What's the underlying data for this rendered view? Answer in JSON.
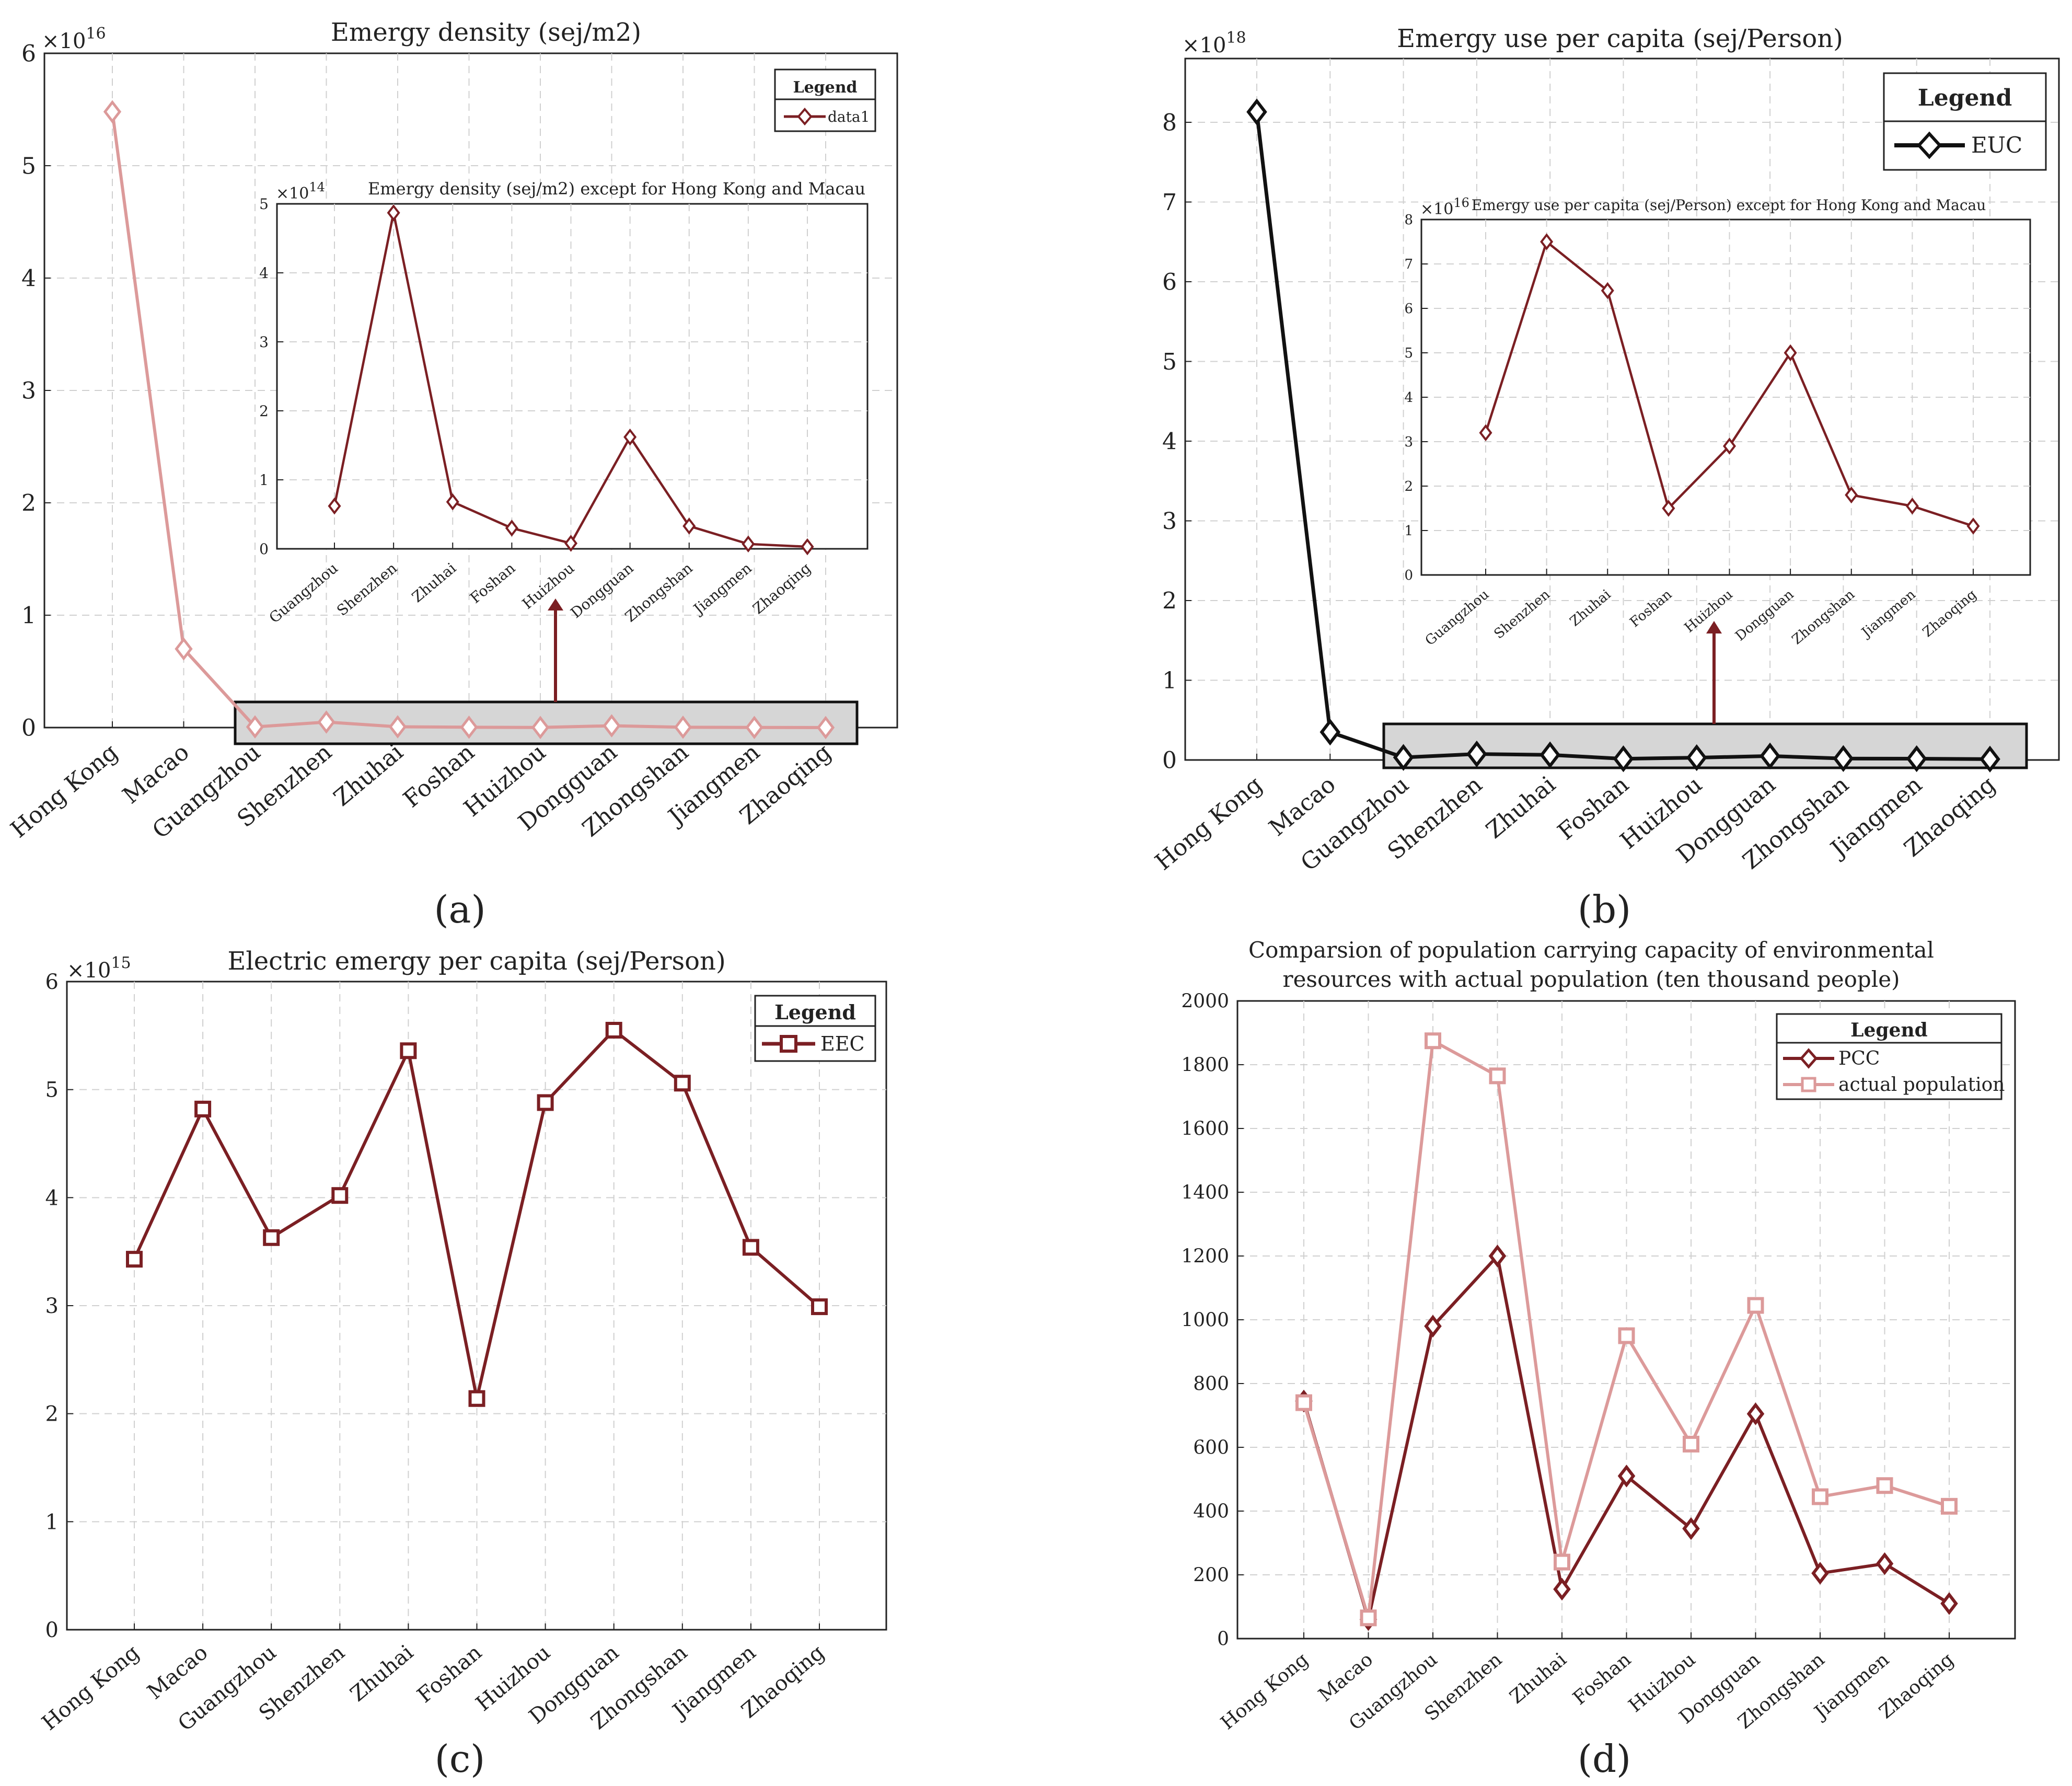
{
  "colors": {
    "dark_red": "#7b1f23",
    "pink": "#dc9a9a",
    "black": "#111111",
    "highlight_fill": "#d6d6d6",
    "grid": "#d0d0d0"
  },
  "panel_labels": {
    "a": "(a)",
    "b": "(b)",
    "c": "(c)",
    "d": "(d)"
  },
  "legend_header": "Legend",
  "chart_data": [
    {
      "id": "a",
      "type": "line",
      "title": "Emergy density (sej/m2)",
      "multiplier": "×10",
      "multiplier_exp": "16",
      "categories": [
        "Hong Kong",
        "Macao",
        "Guangzhou",
        "Shenzhen",
        "Zhuhai",
        "Foshan",
        "Huizhou",
        "Dongguan",
        "Zhongshan",
        "Jiangmen",
        "Zhaoqing"
      ],
      "series": [
        {
          "name": "data1",
          "color": "#dc9a9a",
          "marker": "diamond",
          "values": [
            5.48,
            0.7,
            0.006,
            0.049,
            0.007,
            0.003,
            0.001,
            0.016,
            0.003,
            0.001,
            0.0002
          ]
        }
      ],
      "ylim": [
        0,
        6
      ],
      "yticks": [
        0,
        1,
        2,
        3,
        4,
        5,
        6
      ],
      "grid": true,
      "legend_position": "top-right",
      "highlight": "Guangzhou–Zhaoqing",
      "inset": {
        "title": "Emergy density (sej/m2) except for Hong Kong and Macau",
        "multiplier": "×10",
        "multiplier_exp": "14",
        "categories": [
          "Guangzhou",
          "Shenzhen",
          "Zhuhai",
          "Foshan",
          "Huizhou",
          "Dongguan",
          "Zhongshan",
          "Jiangmen",
          "Zhaoqing"
        ],
        "values": [
          0.62,
          4.87,
          0.68,
          0.3,
          0.08,
          1.62,
          0.33,
          0.07,
          0.03
        ],
        "ylim": [
          0,
          5
        ],
        "yticks": [
          0,
          1,
          2,
          3,
          4,
          5
        ],
        "color": "#7b1f23"
      }
    },
    {
      "id": "b",
      "type": "line",
      "title": "Emergy use per capita (sej/Person)",
      "multiplier": "×10",
      "multiplier_exp": "18",
      "categories": [
        "Hong Kong",
        "Macao",
        "Guangzhou",
        "Shenzhen",
        "Zhuhai",
        "Foshan",
        "Huizhou",
        "Dongguan",
        "Zhongshan",
        "Jiangmen",
        "Zhaoqing"
      ],
      "series": [
        {
          "name": "EUC",
          "color": "#111111",
          "marker": "diamond",
          "values": [
            8.13,
            0.35,
            0.032,
            0.075,
            0.064,
            0.015,
            0.029,
            0.05,
            0.018,
            0.016,
            0.011
          ]
        }
      ],
      "ylim": [
        0,
        8.8
      ],
      "yticks": [
        0,
        1,
        2,
        3,
        4,
        5,
        6,
        7,
        8
      ],
      "grid": true,
      "legend_position": "top-right",
      "highlight": "Guangzhou–Zhaoqing",
      "inset": {
        "title": "Emergy use per capita (sej/Person) except for Hong Kong and Macau",
        "multiplier": "×10",
        "multiplier_exp": "16",
        "categories": [
          "Guangzhou",
          "Shenzhen",
          "Zhuhai",
          "Foshan",
          "Huizhou",
          "Dongguan",
          "Zhongshan",
          "Jiangmen",
          "Zhaoqing"
        ],
        "values": [
          3.2,
          7.5,
          6.4,
          1.5,
          2.9,
          5.0,
          1.8,
          1.55,
          1.1
        ],
        "ylim": [
          0,
          8
        ],
        "yticks": [
          0,
          1,
          2,
          3,
          4,
          5,
          6,
          7,
          8
        ],
        "color": "#7b1f23"
      }
    },
    {
      "id": "c",
      "type": "line",
      "title": "Electric emergy per capita (sej/Person)",
      "multiplier": "×10",
      "multiplier_exp": "15",
      "categories": [
        "Hong Kong",
        "Macao",
        "Guangzhou",
        "Shenzhen",
        "Zhuhai",
        "Foshan",
        "Huizhou",
        "Dongguan",
        "Zhongshan",
        "Jiangmen",
        "Zhaoqing"
      ],
      "series": [
        {
          "name": "EEC",
          "color": "#7b1f23",
          "marker": "square",
          "values": [
            3.43,
            4.82,
            3.63,
            4.02,
            5.36,
            2.14,
            4.88,
            5.55,
            5.06,
            3.54,
            2.99
          ]
        }
      ],
      "ylim": [
        0,
        6
      ],
      "yticks": [
        0,
        1,
        2,
        3,
        4,
        5,
        6
      ],
      "grid": true,
      "legend_position": "top-right"
    },
    {
      "id": "d",
      "type": "line",
      "title": "Comparsion of population carrying capacity of environmental",
      "title_line2": "resources with actual population (ten thousand people)",
      "categories": [
        "Hong Kong",
        "Macao",
        "Guangzhou",
        "Shenzhen",
        "Zhuhai",
        "Foshan",
        "Huizhou",
        "Dongguan",
        "Zhongshan",
        "Jiangmen",
        "Zhaoqing"
      ],
      "series": [
        {
          "name": "PCC",
          "color": "#7b1f23",
          "marker": "diamond",
          "values": [
            745,
            60,
            980,
            1200,
            155,
            510,
            345,
            705,
            205,
            235,
            110
          ]
        },
        {
          "name": "actual population",
          "color": "#dc9a9a",
          "marker": "square",
          "values": [
            740,
            65,
            1875,
            1765,
            240,
            950,
            610,
            1045,
            445,
            480,
            415
          ]
        }
      ],
      "ylim": [
        0,
        2000
      ],
      "yticks": [
        0,
        200,
        400,
        600,
        800,
        1000,
        1200,
        1400,
        1600,
        1800,
        2000
      ],
      "grid": true,
      "legend_position": "top-right"
    }
  ]
}
